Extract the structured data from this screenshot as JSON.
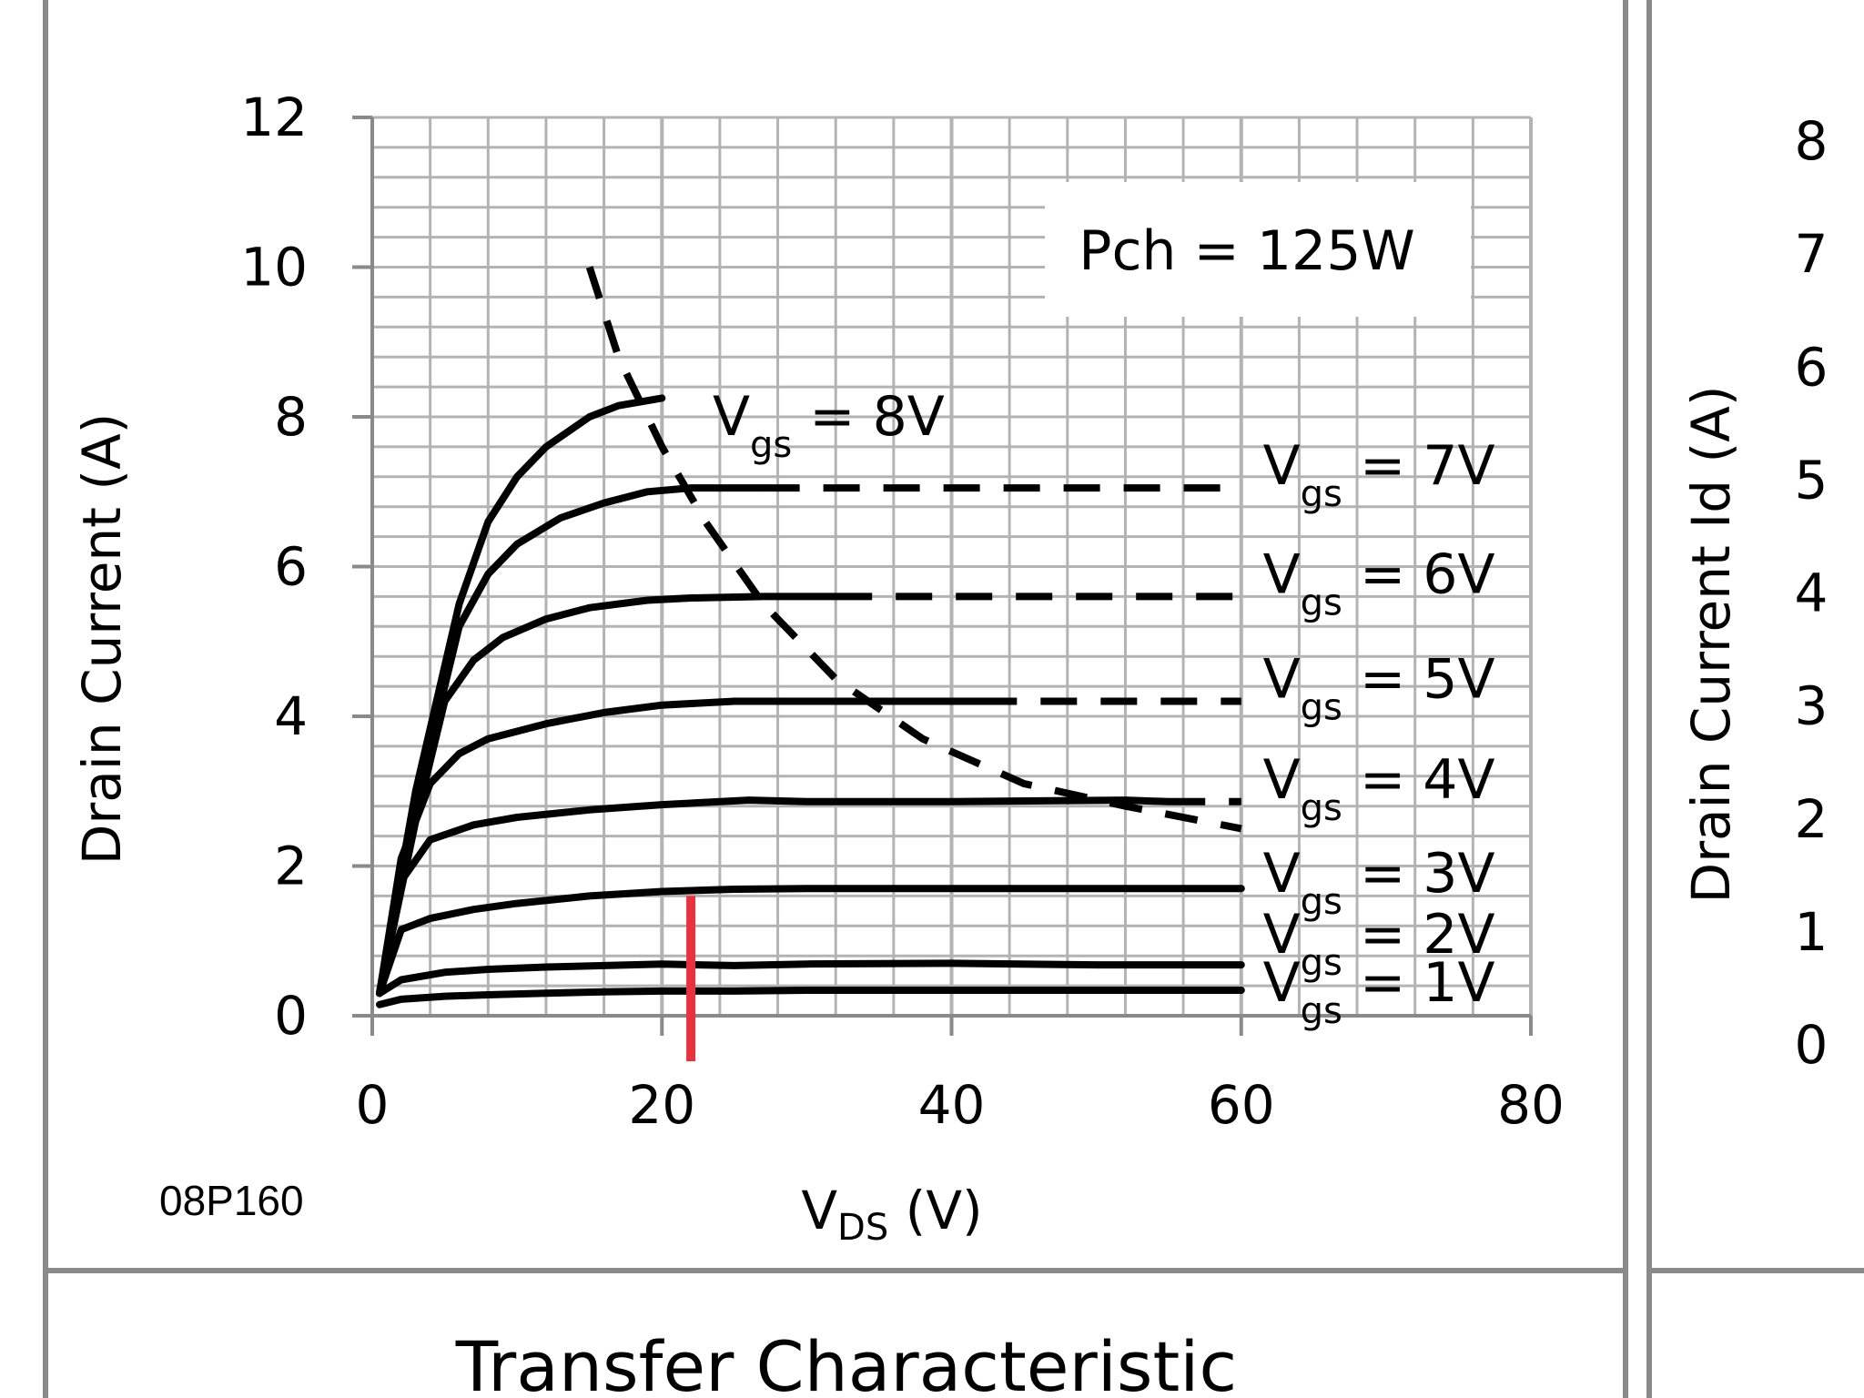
{
  "chart_data": {
    "type": "line",
    "xlabel_main": "V",
    "xlabel_sub": "DS",
    "xlabel_unit": " (V)",
    "ylabel": "Drain Current (A)",
    "xlim": [
      0,
      80
    ],
    "ylim": [
      0,
      12
    ],
    "x_ticks": [
      "0",
      "20",
      "40",
      "60",
      "80"
    ],
    "y_ticks": [
      "0",
      "2",
      "4",
      "6",
      "8",
      "10",
      "12"
    ],
    "grid": true,
    "annotation_box": "Pch = 125W",
    "series": [
      {
        "name_main": "V",
        "name_sub": "gs",
        "name_tail": " = 8V",
        "x": [
          0.5,
          3,
          6,
          8,
          10,
          12,
          15,
          17,
          20
        ],
        "y": [
          0.3,
          3.0,
          5.5,
          6.6,
          7.2,
          7.6,
          8.0,
          8.15,
          8.25
        ],
        "dash_from": null
      },
      {
        "name_main": "V",
        "name_sub": "gs",
        "name_tail": " = 7V",
        "x": [
          0.5,
          3,
          6,
          8,
          10,
          13,
          16,
          19,
          22,
          27,
          60
        ],
        "y": [
          0.3,
          2.8,
          5.2,
          5.9,
          6.3,
          6.65,
          6.85,
          7.0,
          7.05,
          7.05,
          7.05
        ],
        "dash_from": 27
      },
      {
        "name_main": "V",
        "name_sub": "gs",
        "name_tail": " = 6V",
        "x": [
          0.5,
          3,
          5,
          7,
          9,
          12,
          15,
          19,
          22,
          27,
          32,
          60
        ],
        "y": [
          0.3,
          2.6,
          4.2,
          4.75,
          5.05,
          5.3,
          5.45,
          5.55,
          5.58,
          5.6,
          5.6,
          5.6
        ],
        "dash_from": 32
      },
      {
        "name_main": "V",
        "name_sub": "gs",
        "name_tail": " = 5V",
        "x": [
          0.5,
          2,
          4,
          6,
          8,
          12,
          16,
          20,
          25,
          30,
          42,
          60
        ],
        "y": [
          0.3,
          2.1,
          3.1,
          3.5,
          3.7,
          3.9,
          4.05,
          4.15,
          4.2,
          4.2,
          4.2,
          4.2
        ],
        "dash_from": 42
      },
      {
        "name_main": "V",
        "name_sub": "gs",
        "name_tail": " = 4V",
        "x": [
          0.5,
          2,
          4,
          7,
          10,
          15,
          20,
          26,
          30,
          40,
          52,
          55,
          60
        ],
        "y": [
          0.3,
          1.8,
          2.35,
          2.55,
          2.65,
          2.75,
          2.82,
          2.88,
          2.86,
          2.86,
          2.88,
          2.86,
          2.86
        ],
        "dash_from": 55
      },
      {
        "name_main": "V",
        "name_sub": "gs",
        "name_tail": " = 3V",
        "x": [
          0.5,
          2,
          4,
          7,
          10,
          15,
          20,
          25,
          30,
          40,
          50,
          60
        ],
        "y": [
          0.3,
          1.15,
          1.3,
          1.42,
          1.5,
          1.6,
          1.66,
          1.69,
          1.7,
          1.7,
          1.7,
          1.7
        ],
        "dash_from": null
      },
      {
        "name_main": "V",
        "name_sub": "gs",
        "name_tail": " = 2V",
        "x": [
          0.5,
          2,
          5,
          8,
          12,
          16,
          20,
          25,
          30,
          40,
          50,
          60
        ],
        "y": [
          0.3,
          0.48,
          0.58,
          0.62,
          0.65,
          0.67,
          0.69,
          0.67,
          0.69,
          0.7,
          0.68,
          0.68
        ],
        "dash_from": null
      },
      {
        "name_main": "V",
        "name_sub": "gs",
        "name_tail": " = 1V",
        "x": [
          0.5,
          2,
          5,
          8,
          12,
          16,
          20,
          25,
          30,
          40,
          50,
          60
        ],
        "y": [
          0.15,
          0.22,
          0.26,
          0.28,
          0.3,
          0.32,
          0.33,
          0.33,
          0.34,
          0.34,
          0.34,
          0.34
        ],
        "dash_from": null
      }
    ],
    "power_curve": {
      "x": [
        15,
        17,
        20,
        23,
        27,
        32,
        38,
        45,
        52,
        60
      ],
      "y": [
        10.0,
        8.8,
        7.6,
        6.6,
        5.5,
        4.5,
        3.7,
        3.1,
        2.8,
        2.5
      ]
    },
    "marker": {
      "x": 22,
      "y_top": 1.6,
      "color": "#e8333f"
    },
    "label_positions_data_units": null
  },
  "figure": {
    "code_label": "08P160",
    "right_panel_ticks": [
      "8",
      "7",
      "6",
      "5",
      "4",
      "3",
      "2",
      "1",
      "0"
    ],
    "right_panel_ylabel": "Drain Current Id (A)",
    "bottom_title": "Transfer Characteristic"
  }
}
